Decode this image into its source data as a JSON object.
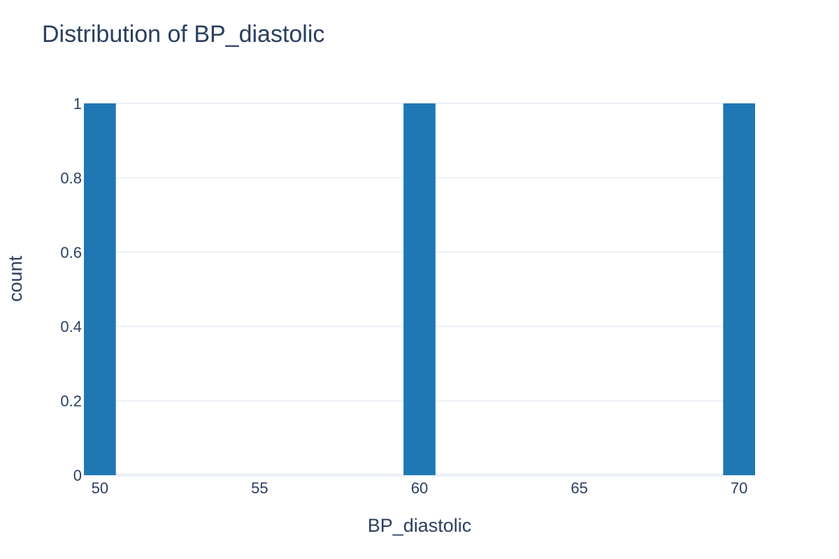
{
  "chart_data": {
    "type": "bar",
    "title": "Distribution of BP_diastolic",
    "xlabel": "BP_diastolic",
    "ylabel": "count",
    "bins": [
      {
        "x0": 49.5,
        "x1": 50.5,
        "count": 1
      },
      {
        "x0": 59.5,
        "x1": 60.5,
        "count": 1
      },
      {
        "x0": 69.5,
        "x1": 70.5,
        "count": 1
      }
    ],
    "xlim": [
      49.5,
      70.5
    ],
    "ylim": [
      0,
      1
    ],
    "x_ticks": [
      50,
      55,
      60,
      65,
      70
    ],
    "x_tick_labels": [
      "50",
      "55",
      "60",
      "65",
      "70"
    ],
    "y_ticks": [
      0,
      0.2,
      0.4,
      0.6,
      0.8,
      1
    ],
    "y_tick_labels": [
      "0",
      "0.2",
      "0.4",
      "0.6",
      "0.8",
      "1"
    ],
    "grid": true,
    "colors": {
      "bar": "#1f77b4",
      "grid": "#ebf0f8",
      "text": "#2a3f5f"
    }
  }
}
